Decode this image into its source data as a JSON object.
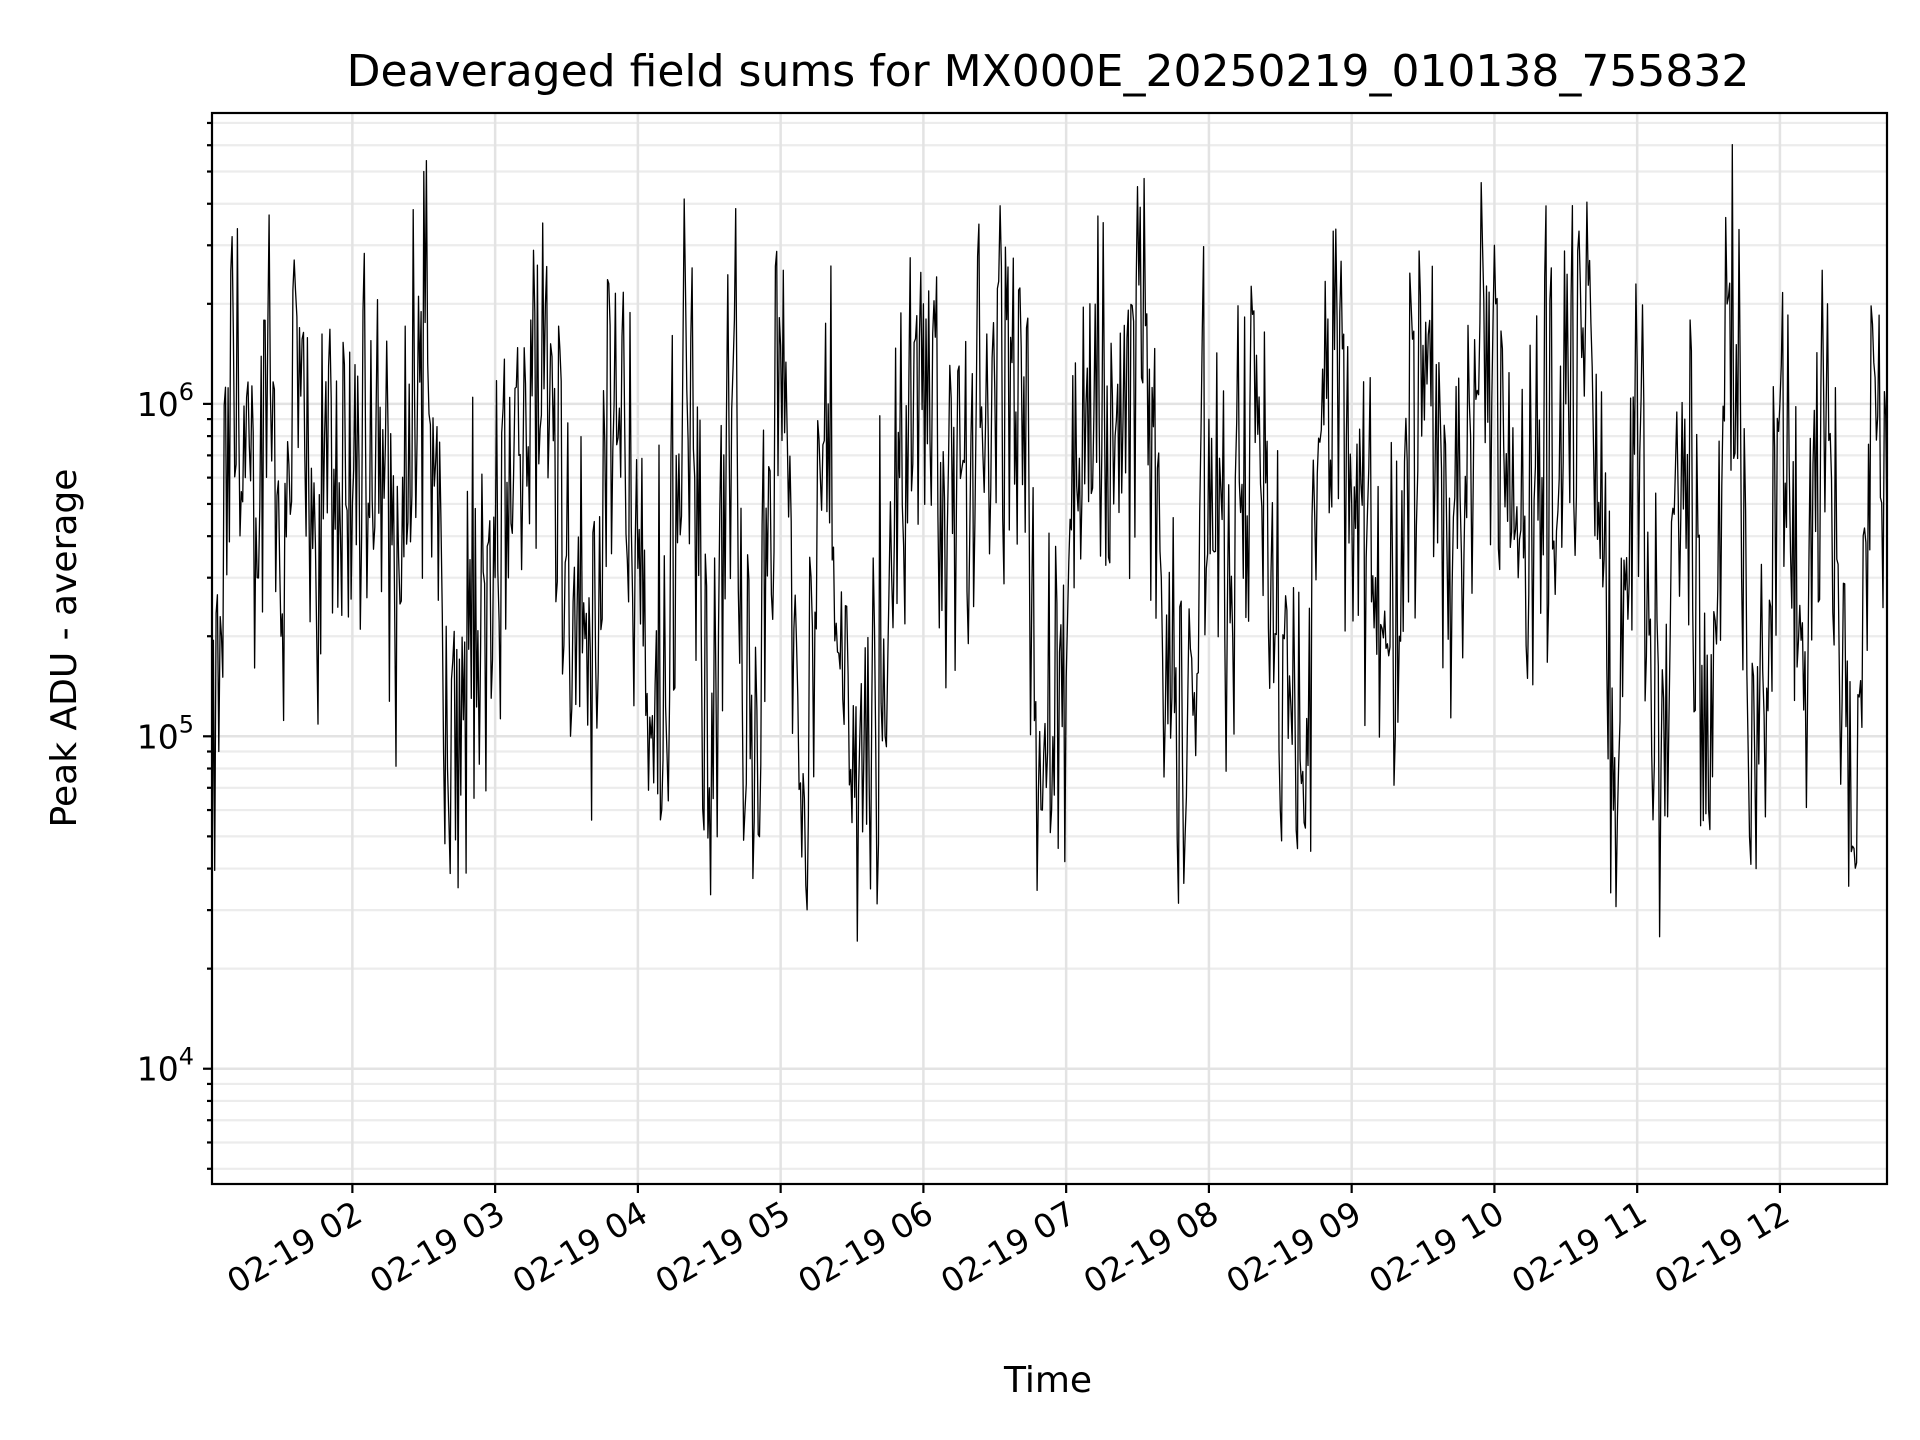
{
  "chart_data": {
    "type": "line",
    "title": "Deaveraged field sums for MX000E_20250219_010138_755832",
    "xlabel": "Time",
    "ylabel": "Peak ADU - average",
    "yscale": "log",
    "xlim": [
      "2025-02-19T01:01",
      "2025-02-19T12:45"
    ],
    "ylim": [
      4500,
      7500000
    ],
    "grid": true,
    "x_tick_labels": [
      "02-19 02",
      "02-19 03",
      "02-19 04",
      "02-19 05",
      "02-19 06",
      "02-19 07",
      "02-19 08",
      "02-19 09",
      "02-19 10",
      "02-19 11",
      "02-19 12"
    ],
    "x_tick_times": [
      "2025-02-19T02:00",
      "2025-02-19T03:00",
      "2025-02-19T04:00",
      "2025-02-19T05:00",
      "2025-02-19T06:00",
      "2025-02-19T07:00",
      "2025-02-19T08:00",
      "2025-02-19T09:00",
      "2025-02-19T10:00",
      "2025-02-19T11:00",
      "2025-02-19T12:00"
    ],
    "y_ticks": [
      10000,
      100000,
      1000000
    ],
    "series": [
      {
        "name": "",
        "color": "#000000",
        "x": [
          "2025-02-19T01:01",
          "2025-02-19T01:05",
          "2025-02-19T01:10",
          "2025-02-19T01:15",
          "2025-02-19T01:20",
          "2025-02-19T01:25",
          "2025-02-19T01:30",
          "2025-02-19T01:35",
          "2025-02-19T01:40",
          "2025-02-19T01:45",
          "2025-02-19T01:50",
          "2025-02-19T01:55",
          "2025-02-19T02:00",
          "2025-02-19T02:10",
          "2025-02-19T02:20",
          "2025-02-19T02:30",
          "2025-02-19T02:40",
          "2025-02-19T02:50",
          "2025-02-19T03:00",
          "2025-02-19T03:10",
          "2025-02-19T03:20",
          "2025-02-19T03:30",
          "2025-02-19T03:40",
          "2025-02-19T03:50",
          "2025-02-19T04:00",
          "2025-02-19T04:10",
          "2025-02-19T04:20",
          "2025-02-19T04:30",
          "2025-02-19T04:40",
          "2025-02-19T04:45",
          "2025-02-19T04:50",
          "2025-02-19T05:00",
          "2025-02-19T05:10",
          "2025-02-19T05:20",
          "2025-02-19T05:30",
          "2025-02-19T05:40",
          "2025-02-19T05:50",
          "2025-02-19T06:00",
          "2025-02-19T06:10",
          "2025-02-19T06:20",
          "2025-02-19T06:30",
          "2025-02-19T06:40",
          "2025-02-19T06:50",
          "2025-02-19T07:00",
          "2025-02-19T07:10",
          "2025-02-19T07:20",
          "2025-02-19T07:30",
          "2025-02-19T07:40",
          "2025-02-19T07:50",
          "2025-02-19T08:00",
          "2025-02-19T08:10",
          "2025-02-19T08:20",
          "2025-02-19T08:30",
          "2025-02-19T08:40",
          "2025-02-19T08:50",
          "2025-02-19T09:00",
          "2025-02-19T09:10",
          "2025-02-19T09:20",
          "2025-02-19T09:30",
          "2025-02-19T09:40",
          "2025-02-19T09:50",
          "2025-02-19T10:00",
          "2025-02-19T10:10",
          "2025-02-19T10:20",
          "2025-02-19T10:30",
          "2025-02-19T10:40",
          "2025-02-19T10:50",
          "2025-02-19T11:00",
          "2025-02-19T11:10",
          "2025-02-19T11:20",
          "2025-02-19T11:30",
          "2025-02-19T11:40",
          "2025-02-19T11:50",
          "2025-02-19T12:00",
          "2025-02-19T12:10",
          "2025-02-19T12:20",
          "2025-02-19T12:30",
          "2025-02-19T12:40",
          "2025-02-19T12:45"
        ],
        "values": [
          30000,
          200000,
          1600000,
          600000,
          300000,
          3700000,
          200000,
          2200000,
          700000,
          200000,
          1300000,
          400000,
          500000,
          1000000,
          250000,
          5000000,
          80000,
          130000,
          300000,
          700000,
          3500000,
          350000,
          180000,
          1000000,
          320000,
          60000,
          2200000,
          70000,
          1300000,
          60000,
          120000,
          1500000,
          65000,
          1000000,
          55000,
          90000,
          600000,
          2000000,
          400000,
          800000,
          1100000,
          2200000,
          60000,
          150000,
          2000000,
          500000,
          4500000,
          300000,
          50000,
          900000,
          200000,
          1400000,
          60000,
          55000,
          1800000,
          500000,
          300000,
          200000,
          1500000,
          400000,
          800000,
          3000000,
          300000,
          600000,
          1000000,
          2700000,
          60000,
          1300000,
          80000,
          900000,
          60000,
          2500000,
          40000,
          1000000,
          120000,
          2000000,
          45000,
          1200000,
          400000
        ]
      }
    ]
  }
}
